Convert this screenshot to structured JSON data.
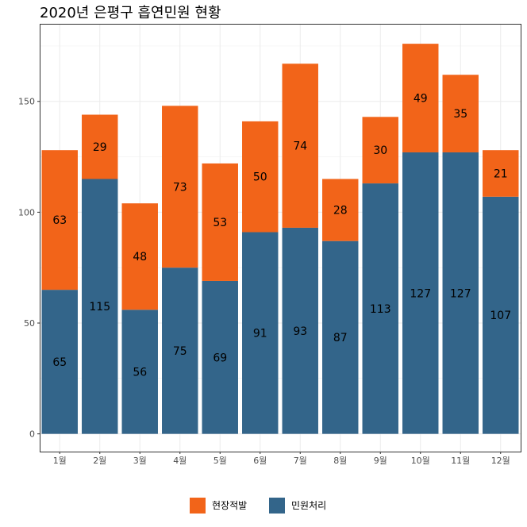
{
  "chart_data": {
    "type": "bar",
    "stacked": true,
    "title": "2020년 은평구 흡연민원 현황",
    "xlabel": "",
    "ylabel": "",
    "categories": [
      "1월",
      "2월",
      "3월",
      "4월",
      "5월",
      "6월",
      "7월",
      "8월",
      "9월",
      "10월",
      "11월",
      "12월"
    ],
    "series": [
      {
        "name": "민원처리",
        "color": "#33658a",
        "values": [
          65,
          115,
          56,
          75,
          69,
          91,
          93,
          87,
          113,
          127,
          127,
          107
        ]
      },
      {
        "name": "현장적발",
        "color": "#f26419",
        "values": [
          63,
          29,
          48,
          73,
          53,
          50,
          74,
          28,
          30,
          49,
          35,
          21
        ]
      }
    ],
    "ylim": [
      -8,
      185
    ],
    "yticks": [
      0,
      50,
      100,
      150
    ],
    "grid": true,
    "legend_position": "bottom",
    "legend_order": [
      "현장적발",
      "민원처리"
    ]
  }
}
